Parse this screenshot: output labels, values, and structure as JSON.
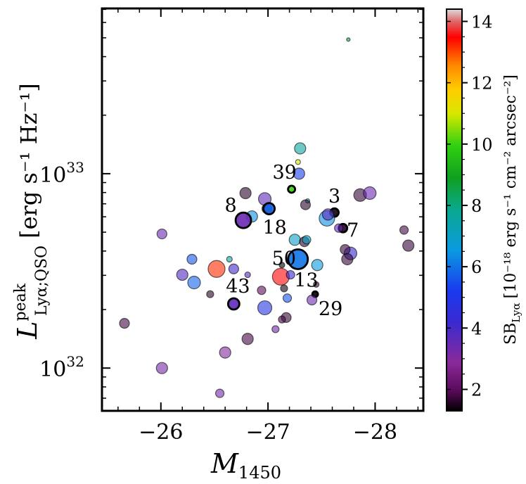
{
  "chart_data": {
    "type": "scatter",
    "xlabel": "M",
    "xlabel_sub": "1450",
    "ylabel_main": "L",
    "ylabel_sup": "peak",
    "ylabel_sub": "Lyα;QSO",
    "ylabel_units": "[erg s⁻¹ Hz⁻¹]",
    "xlim": [
      -25.45,
      -28.45
    ],
    "ylim_log10": [
      31.78,
      33.85
    ],
    "x_ticks": [
      -26,
      -27,
      -28
    ],
    "x_tick_labels": [
      "−26",
      "−27",
      "−28"
    ],
    "y_ticks_log10": [
      32,
      33
    ],
    "y_tick_labels": [
      "10",
      "10"
    ],
    "y_tick_sup": "32",
    "y_tick_sup2": "33",
    "colorbar": {
      "label": "SB_Lyα [10⁻¹⁸ erg s⁻¹ cm⁻² arcsec⁻²]",
      "label_text": "SB",
      "label_sub": "Lyα",
      "label_units": "[10⁻¹⁸ erg s⁻¹ cm⁻² arcsec⁻²]",
      "range": [
        1.3,
        14.4
      ],
      "ticks": [
        2,
        4,
        6,
        8,
        10,
        12,
        14
      ],
      "tick_labels": [
        "2",
        "4",
        "6",
        "8",
        "10",
        "12",
        "14"
      ]
    },
    "points": [
      {
        "x": -27.75,
        "y": 33.69,
        "sb": 8.6,
        "s": 2.5
      },
      {
        "x": -26.79,
        "y": 32.9,
        "sb": 1.6,
        "s": 8
      },
      {
        "x": -26.97,
        "y": 32.87,
        "sb": 3.6,
        "s": 9
      },
      {
        "x": -27.3,
        "y": 33.13,
        "sb": 7.6,
        "s": 8
      },
      {
        "x": -27.28,
        "y": 33.06,
        "sb": 11.0,
        "s": 3.5
      },
      {
        "x": -27.29,
        "y": 33.0,
        "sb": 5.3,
        "s": 8
      },
      {
        "x": -27.22,
        "y": 32.92,
        "sb": 10.0,
        "s": 5,
        "outline": true,
        "label": "39"
      },
      {
        "x": -27.37,
        "y": 32.86,
        "sb": 7.0,
        "s": 3
      },
      {
        "x": -27.35,
        "y": 32.84,
        "sb": 1.6,
        "s": 7
      },
      {
        "x": -26.99,
        "y": 32.82,
        "sb": 1.5,
        "s": 7
      },
      {
        "x": -26.85,
        "y": 32.78,
        "sb": 6.4,
        "s": 8
      },
      {
        "x": -26.77,
        "y": 32.76,
        "sb": 3.4,
        "s": 11,
        "outline": true,
        "label": "8"
      },
      {
        "x": -27.01,
        "y": 32.82,
        "sb": 5.8,
        "s": 8,
        "outline": true,
        "label": "18"
      },
      {
        "x": -27.62,
        "y": 32.8,
        "sb": 1.4,
        "s": 6,
        "outline": true,
        "label": "3"
      },
      {
        "x": -27.7,
        "y": 32.72,
        "sb": 1.6,
        "s": 6,
        "outline": true,
        "label": "7"
      },
      {
        "x": -27.55,
        "y": 32.77,
        "sb": 6.4,
        "s": 11
      },
      {
        "x": -27.56,
        "y": 32.79,
        "sb": 3.6,
        "s": 8
      },
      {
        "x": -27.66,
        "y": 32.72,
        "sb": 3.6,
        "s": 6
      },
      {
        "x": -27.86,
        "y": 32.89,
        "sb": 1.7,
        "s": 9
      },
      {
        "x": -27.95,
        "y": 32.9,
        "sb": 3.4,
        "s": 9
      },
      {
        "x": -27.77,
        "y": 32.59,
        "sb": 4.2,
        "s": 9
      },
      {
        "x": -27.72,
        "y": 32.61,
        "sb": 1.7,
        "s": 7
      },
      {
        "x": -27.74,
        "y": 32.56,
        "sb": 1.7,
        "s": 8
      },
      {
        "x": -28.27,
        "y": 32.71,
        "sb": 1.8,
        "s": 6
      },
      {
        "x": -28.31,
        "y": 32.63,
        "sb": 1.7,
        "s": 8
      },
      {
        "x": -27.25,
        "y": 32.66,
        "sb": 7.0,
        "s": 8
      },
      {
        "x": -27.34,
        "y": 32.65,
        "sb": 1.6,
        "s": 7
      },
      {
        "x": -27.36,
        "y": 32.66,
        "sb": 7.0,
        "s": 6
      },
      {
        "x": -27.28,
        "y": 32.56,
        "sb": 6.0,
        "s": 14,
        "outline": true,
        "label": "50"
      },
      {
        "x": -27.46,
        "y": 32.53,
        "sb": 6.6,
        "s": 8
      },
      {
        "x": -27.12,
        "y": 32.47,
        "sb": 13.5,
        "s": 12,
        "label": "13"
      },
      {
        "x": -27.21,
        "y": 32.48,
        "sb": 4.2,
        "s": 6
      },
      {
        "x": -27.15,
        "y": 32.41,
        "sb": 1.4,
        "s": 5
      },
      {
        "x": -27.13,
        "y": 32.53,
        "sb": 1.3,
        "s": 4
      },
      {
        "x": -27.18,
        "y": 32.36,
        "sb": 5.6,
        "s": 6
      },
      {
        "x": -27.45,
        "y": 32.43,
        "sb": 1.7,
        "s": 4
      },
      {
        "x": -27.44,
        "y": 32.38,
        "sb": 1.3,
        "s": 4,
        "outline": true,
        "label": "29"
      },
      {
        "x": -27.41,
        "y": 32.35,
        "sb": 3.3,
        "s": 7
      },
      {
        "x": -26.81,
        "y": 32.48,
        "sb": 3.6,
        "s": 4
      },
      {
        "x": -26.94,
        "y": 32.4,
        "sb": 2.0,
        "s": 6
      },
      {
        "x": -26.68,
        "y": 32.33,
        "sb": 3.6,
        "s": 8,
        "outline": true,
        "label": "43"
      },
      {
        "x": -26.52,
        "y": 32.51,
        "sb": 13.2,
        "s": 12
      },
      {
        "x": -26.68,
        "y": 32.51,
        "sb": 4.0,
        "s": 7
      },
      {
        "x": -26.64,
        "y": 32.56,
        "sb": 7.6,
        "s": 4
      },
      {
        "x": -26.2,
        "y": 32.48,
        "sb": 3.8,
        "s": 8
      },
      {
        "x": -26.29,
        "y": 32.56,
        "sb": 5.6,
        "s": 7
      },
      {
        "x": -26.31,
        "y": 32.44,
        "sb": 5.8,
        "s": 9
      },
      {
        "x": -26.46,
        "y": 32.38,
        "sb": 1.6,
        "s": 5
      },
      {
        "x": -26.01,
        "y": 32.69,
        "sb": 3.4,
        "s": 7
      },
      {
        "x": -25.66,
        "y": 32.23,
        "sb": 1.8,
        "s": 7
      },
      {
        "x": -26.97,
        "y": 32.31,
        "sb": 4.8,
        "s": 10
      },
      {
        "x": -27.17,
        "y": 32.26,
        "sb": 1.7,
        "s": 7
      },
      {
        "x": -27.13,
        "y": 32.25,
        "sb": 1.8,
        "s": 5
      },
      {
        "x": -27.07,
        "y": 32.2,
        "sb": 3.3,
        "s": 5
      },
      {
        "x": -26.81,
        "y": 32.15,
        "sb": 1.8,
        "s": 8
      },
      {
        "x": -26.6,
        "y": 32.08,
        "sb": 3.0,
        "s": 8
      },
      {
        "x": -26.01,
        "y": 32.0,
        "sb": 3.2,
        "s": 8
      },
      {
        "x": -26.55,
        "y": 31.87,
        "sb": 3.2,
        "s": 6
      }
    ]
  }
}
